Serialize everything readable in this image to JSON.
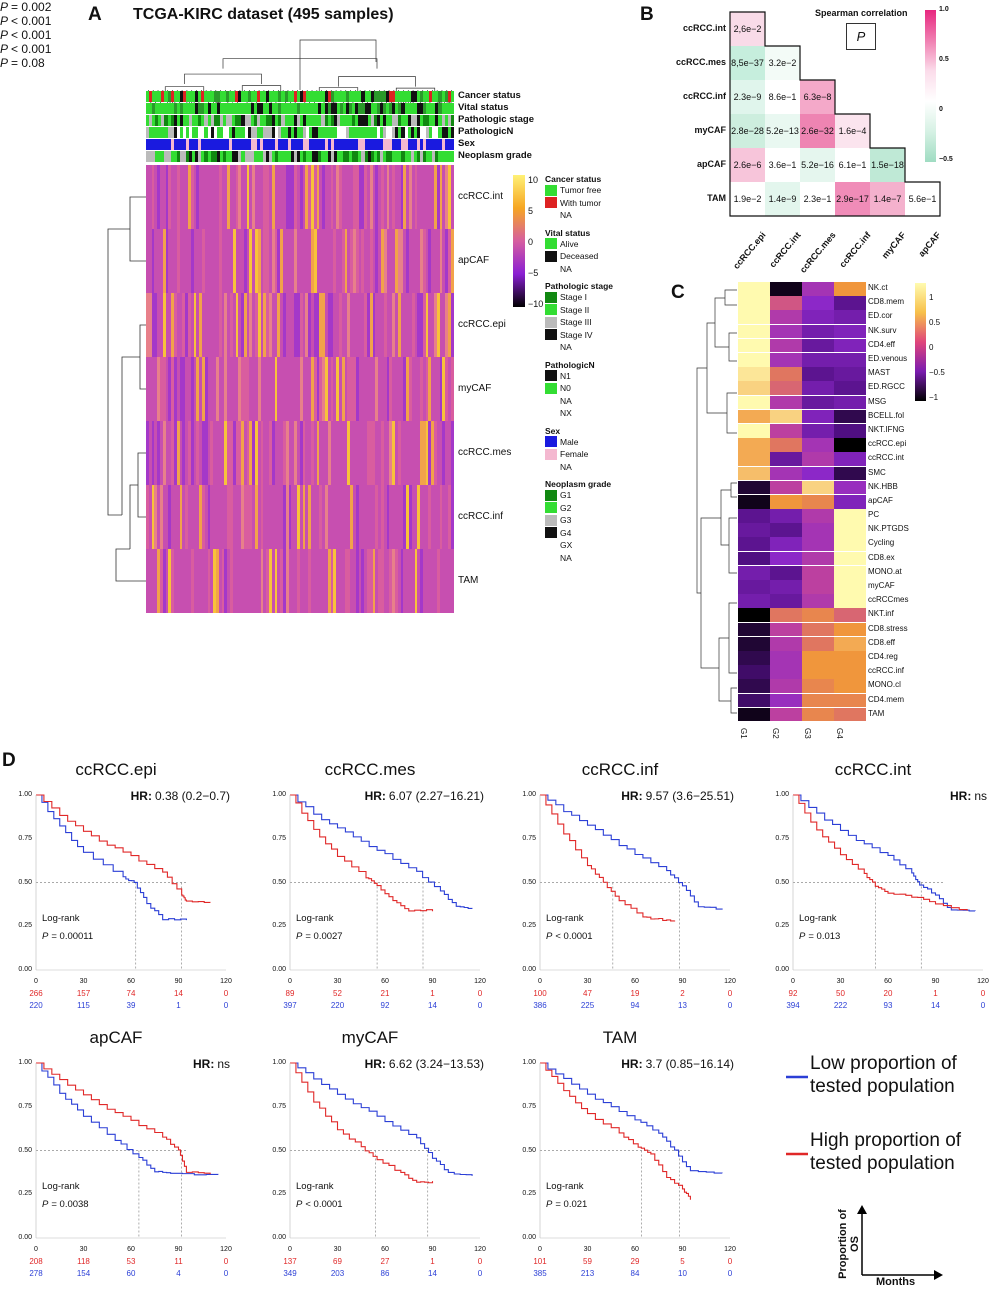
{
  "panelA": {
    "label": "A",
    "title": "TCGA-KIRC dataset (495 samples)",
    "annotations": [
      "Cancer status",
      "Vital status",
      "Pathologic stage",
      "PathologicN",
      "Sex",
      "Neoplasm grade"
    ],
    "rows": [
      "ccRCC.int",
      "apCAF",
      "ccRCC.epi",
      "myCAF",
      "ccRCC.mes",
      "ccRCC.inf",
      "TAM"
    ],
    "scale_ticks": [
      "10",
      "5",
      "0",
      "−5",
      "−10"
    ],
    "legend": [
      {
        "title": "Cancer status",
        "items": [
          {
            "label": "Tumor free",
            "color": "#33dd33"
          },
          {
            "label": "With tumor",
            "color": "#dd2222"
          },
          {
            "label": "NA",
            "color": ""
          }
        ]
      },
      {
        "title": "Vital status",
        "items": [
          {
            "label": "Alive",
            "color": "#33dd33"
          },
          {
            "label": "Deceased",
            "color": "#111111"
          },
          {
            "label": "NA",
            "color": ""
          }
        ]
      },
      {
        "title": "Pathologic stage",
        "items": [
          {
            "label": "Stage I",
            "color": "#118811"
          },
          {
            "label": "Stage II",
            "color": "#33dd33"
          },
          {
            "label": "Stage III",
            "color": "#bbbbbb"
          },
          {
            "label": "Stage IV",
            "color": "#111111"
          },
          {
            "label": "NA",
            "color": ""
          }
        ]
      },
      {
        "title": "PathologicN",
        "items": [
          {
            "label": "N1",
            "color": "#111111"
          },
          {
            "label": "N0",
            "color": "#33dd33"
          },
          {
            "label": "NA",
            "color": ""
          },
          {
            "label": "NX",
            "color": ""
          }
        ]
      },
      {
        "title": "Sex",
        "items": [
          {
            "label": "Male",
            "color": "#1a1adf"
          },
          {
            "label": "Female",
            "color": "#f4b8d0"
          },
          {
            "label": "NA",
            "color": ""
          }
        ]
      },
      {
        "title": "Neoplasm grade",
        "items": [
          {
            "label": "G1",
            "color": "#118811"
          },
          {
            "label": "G2",
            "color": "#33dd33"
          },
          {
            "label": "G3",
            "color": "#bbbbbb"
          },
          {
            "label": "G4",
            "color": "#111111"
          },
          {
            "label": "GX",
            "color": ""
          },
          {
            "label": "NA",
            "color": ""
          }
        ]
      }
    ]
  },
  "panelB": {
    "label": "B",
    "title": "Spearman correlation",
    "p_box": "P",
    "scale_ticks": [
      "1.0",
      "0.5",
      "0",
      "−0.5"
    ],
    "labels": [
      "ccRCC.int",
      "ccRCC.mes",
      "ccRCC.inf",
      "myCAF",
      "apCAF",
      "TAM"
    ],
    "xlabels": [
      "ccRCC.epi",
      "ccRCC.int",
      "ccRCC.mes",
      "ccRCC.inf",
      "myCAF",
      "apCAF"
    ],
    "cells": [
      [
        {
          "t": "2,6e−2",
          "c": "#f9dbe8"
        }
      ],
      [
        {
          "t": "8,5e−37",
          "c": "#c6eedd"
        },
        {
          "t": "3.2e−2",
          "c": "#f3fbf7"
        }
      ],
      [
        {
          "t": "2.3e−9",
          "c": "#e0f5ec"
        },
        {
          "t": "8.6e−1",
          "c": "#ffffff"
        },
        {
          "t": "6.3e−8",
          "c": "#f4a9c9"
        }
      ],
      [
        {
          "t": "2.8e−28",
          "c": "#cdeede"
        },
        {
          "t": "5.2e−13",
          "c": "#e9f8f1"
        },
        {
          "t": "2.6e−32",
          "c": "#ee84b2"
        },
        {
          "t": "1.6e−4",
          "c": "#fbe4ee"
        }
      ],
      [
        {
          "t": "2.6e−6",
          "c": "#f7c5da"
        },
        {
          "t": "3.6e−1",
          "c": "#ffffff"
        },
        {
          "t": "5.2e−16",
          "c": "#e5f6ee"
        },
        {
          "t": "6.1e−1",
          "c": "#ffffff"
        },
        {
          "t": "1.5e−18",
          "c": "#bfe9d6"
        }
      ],
      [
        {
          "t": "1.9e−2",
          "c": "#ffffff"
        },
        {
          "t": "1.4e−9",
          "c": "#e3f6ed"
        },
        {
          "t": "2.3e−1",
          "c": "#ffffff"
        },
        {
          "t": "2.9e−17",
          "c": "#f08cb8"
        },
        {
          "t": "1.4e−7",
          "c": "#f4b1cd"
        },
        {
          "t": "5.6e−1",
          "c": "#ffffff"
        }
      ]
    ]
  },
  "panelC": {
    "label": "C",
    "rows": [
      "NK.ct",
      "CD8.mem",
      "ED.cor",
      "NK.surv",
      "CD4.eff",
      "ED.venous",
      "MAST",
      "ED.RGCC",
      "MSG",
      "BCELL.fol",
      "NKT.IFNG",
      "ccRCC.epi",
      "ccRCC.int",
      "SMC",
      "NK.HBB",
      "apCAF",
      "PC",
      "NK.PTGDS",
      "Cycling",
      "CD8.ex",
      "MONO.at",
      "myCAF",
      "ccRCCmes",
      "NKT.inf",
      "CD8.stress",
      "CD8.eff",
      "CD4.reg",
      "ccRCC.inf",
      "MONO.cl",
      "CD4.mem",
      "TAM"
    ],
    "cols": [
      "G1",
      "G2",
      "G3",
      "G4"
    ],
    "scale_ticks": [
      "1",
      "0.5",
      "0",
      "−0.5",
      "−1"
    ],
    "values": [
      [
        1.0,
        -1.4,
        -0.3,
        0.5
      ],
      [
        1.0,
        0.1,
        -0.5,
        -0.9
      ],
      [
        1.0,
        -0.2,
        -0.6,
        -0.7
      ],
      [
        1.0,
        -0.3,
        -0.7,
        -0.6
      ],
      [
        1.0,
        -0.2,
        -0.8,
        -0.6
      ],
      [
        1.0,
        -0.3,
        -0.7,
        -0.7
      ],
      [
        0.9,
        0.3,
        -0.9,
        -0.8
      ],
      [
        0.8,
        0.2,
        -0.7,
        -0.9
      ],
      [
        1.0,
        -0.2,
        -0.8,
        -0.7
      ],
      [
        0.6,
        0.8,
        -0.6,
        -1.2
      ],
      [
        1.0,
        -0.1,
        -0.7,
        -1.0
      ],
      [
        0.6,
        0.3,
        -0.3,
        -1.5
      ],
      [
        0.6,
        -0.8,
        -0.2,
        -0.6
      ],
      [
        0.7,
        -0.3,
        -0.5,
        -1.2
      ],
      [
        -1.3,
        -0.1,
        0.8,
        -0.4
      ],
      [
        -1.4,
        0.5,
        0.4,
        -0.6
      ],
      [
        -0.9,
        -0.7,
        -0.2,
        1.0
      ],
      [
        -0.8,
        -0.9,
        -0.3,
        1.0
      ],
      [
        -0.9,
        -0.6,
        -0.3,
        1.0
      ],
      [
        -1.0,
        -0.5,
        -0.2,
        1.0
      ],
      [
        -0.7,
        -0.9,
        -0.1,
        1.0
      ],
      [
        -0.8,
        -0.7,
        -0.1,
        1.0
      ],
      [
        -0.7,
        -0.8,
        -0.2,
        1.0
      ],
      [
        -1.5,
        0.3,
        0.4,
        0.2
      ],
      [
        -1.3,
        -0.1,
        0.3,
        0.5
      ],
      [
        -1.3,
        -0.2,
        0.3,
        0.6
      ],
      [
        -1.2,
        -0.3,
        0.5,
        0.5
      ],
      [
        -1.1,
        -0.3,
        0.5,
        0.5
      ],
      [
        -1.2,
        -0.2,
        0.4,
        0.5
      ],
      [
        -1.1,
        -0.4,
        0.4,
        0.4
      ],
      [
        -1.4,
        -0.1,
        0.4,
        0.3
      ]
    ]
  },
  "panelD": {
    "label": "D",
    "log_rank": "Log-rank",
    "yticks": [
      "1.00",
      "0.75",
      "0.50",
      "0.25",
      "0.00"
    ],
    "xticks": [
      "0",
      "30",
      "60",
      "90",
      "120"
    ],
    "plots": [
      {
        "title": "ccRCC.epi",
        "hr_label": "HR:",
        "hr": "0.38 (0.2−0.7)",
        "p_label": "P",
        "p": "= 0.002",
        "lr_p": "= 0.00011",
        "risk_high": [
          "266",
          "157",
          "74",
          "14",
          "0"
        ],
        "risk_low": [
          "220",
          "115",
          "39",
          "1",
          "0"
        ]
      },
      {
        "title": "ccRCC.mes",
        "hr_label": "HR:",
        "hr": "6.07 (2.27−16.21)",
        "p_label": "P",
        "p": "< 0.001",
        "lr_p": "= 0.0027",
        "risk_high": [
          "89",
          "52",
          "21",
          "1",
          "0"
        ],
        "risk_low": [
          "397",
          "220",
          "92",
          "14",
          "0"
        ]
      },
      {
        "title": "ccRCC.inf",
        "hr_label": "HR:",
        "hr": "9.57 (3.6−25.51)",
        "p_label": "P",
        "p": "< 0.001",
        "lr_p": "< 0.0001",
        "risk_high": [
          "100",
          "47",
          "19",
          "2",
          "0"
        ],
        "risk_low": [
          "386",
          "225",
          "94",
          "13",
          "0"
        ]
      },
      {
        "title": "ccRCC.int",
        "hr_label": "HR:",
        "hr": "ns",
        "p_label": "",
        "p": "",
        "lr_p": "= 0.013",
        "risk_high": [
          "92",
          "50",
          "20",
          "1",
          "0"
        ],
        "risk_low": [
          "394",
          "222",
          "93",
          "14",
          "0"
        ]
      },
      {
        "title": "apCAF",
        "hr_label": "HR:",
        "hr": "ns",
        "p_label": "",
        "p": "",
        "lr_p": "= 0.0038",
        "risk_high": [
          "208",
          "118",
          "53",
          "11",
          "0"
        ],
        "risk_low": [
          "278",
          "154",
          "60",
          "4",
          "0"
        ]
      },
      {
        "title": "myCAF",
        "hr_label": "HR:",
        "hr": "6.62 (3.24−13.53)",
        "p_label": "P",
        "p": "< 0.001",
        "lr_p": "< 0.0001",
        "risk_high": [
          "137",
          "69",
          "27",
          "1",
          "0"
        ],
        "risk_low": [
          "349",
          "203",
          "86",
          "14",
          "0"
        ]
      },
      {
        "title": "TAM",
        "hr_label": "HR:",
        "hr": "3.7 (0.85−16.14)",
        "p_label": "P",
        "p": "= 0.08",
        "lr_p": "= 0.021",
        "risk_high": [
          "101",
          "59",
          "29",
          "5",
          "0"
        ],
        "risk_low": [
          "385",
          "213",
          "84",
          "10",
          "0"
        ]
      }
    ],
    "legend_low": "Low proportion of tested population",
    "legend_high": "High proportion of tested population",
    "axis_y": "Proportion of OS",
    "axis_x": "Months",
    "colors": {
      "low": "#2b3fd6",
      "high": "#e02828"
    }
  }
}
